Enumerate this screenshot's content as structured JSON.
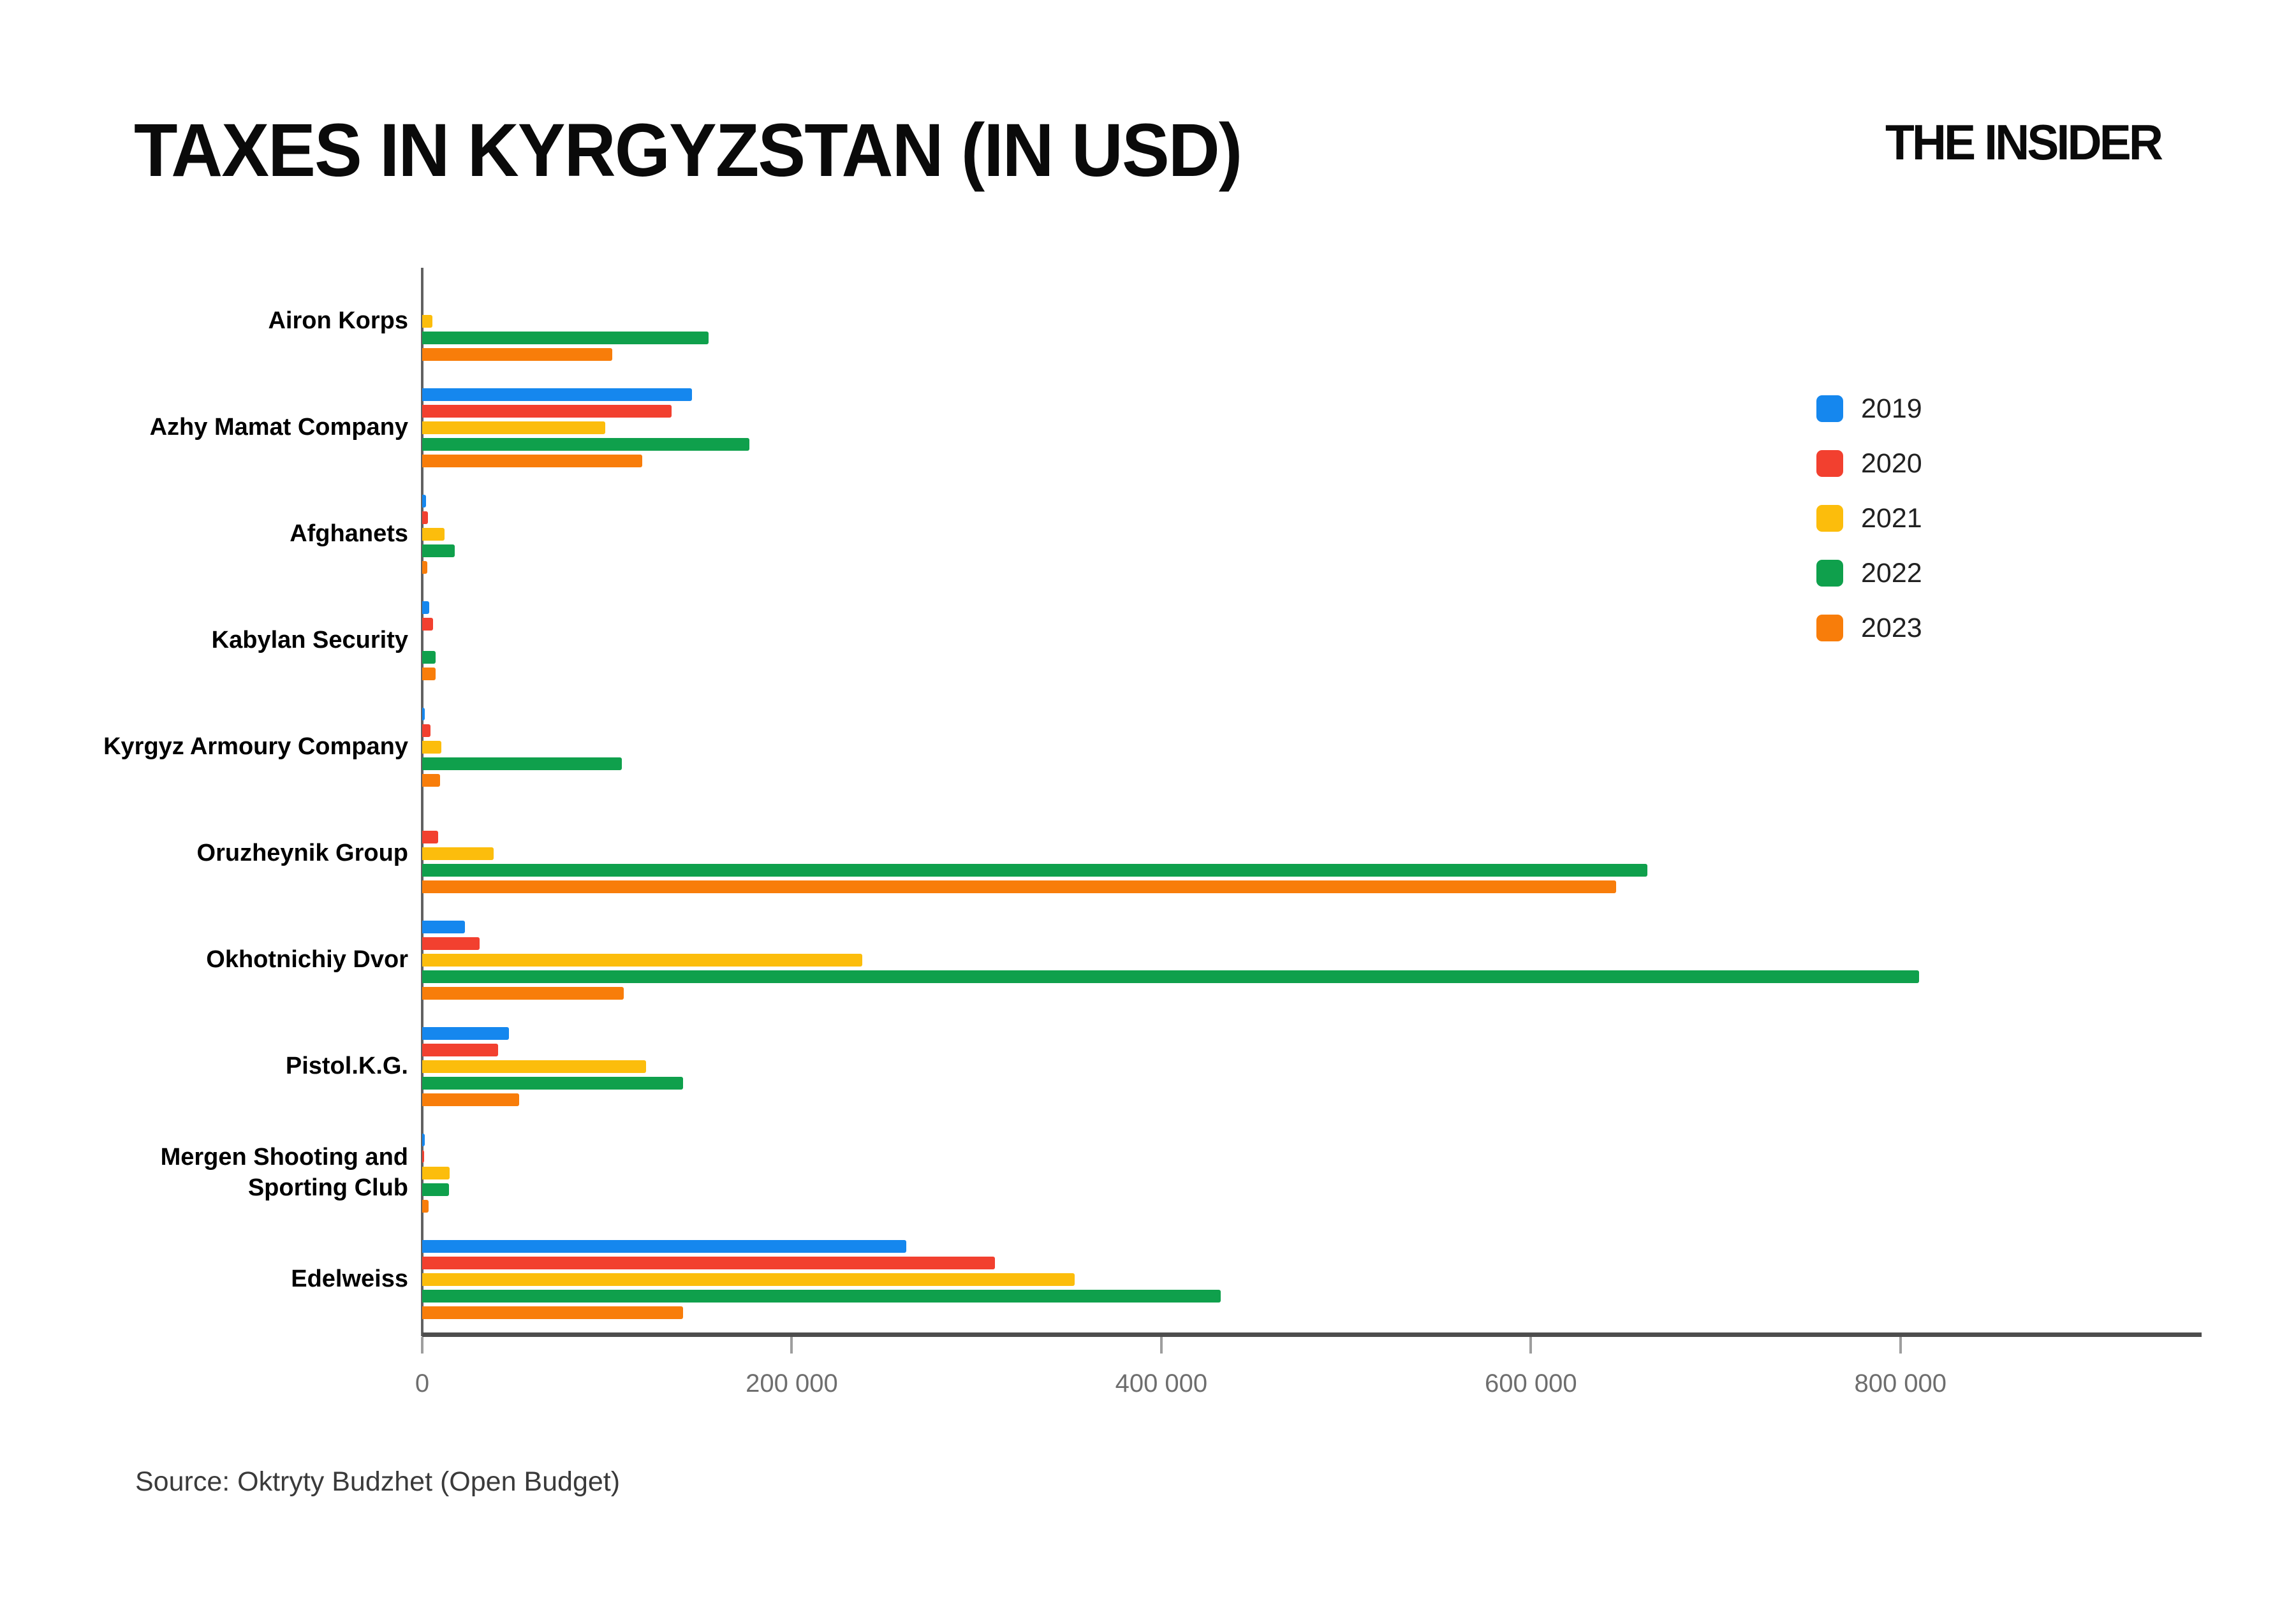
{
  "header": {
    "title": "TAXES IN KYRGYZSTAN (IN USD)",
    "brand": "THE INSIDER"
  },
  "footer": {
    "source": "Source: Oktryty Budzhet (Open Budget)"
  },
  "colors": {
    "y2019": "#1587EE",
    "y2020": "#F2402F",
    "y2021": "#FCBD0C",
    "y2022": "#0FA04C",
    "y2023": "#F87D0A",
    "axis": "#616161",
    "tick_label": "#6E6E6E"
  },
  "chart_data": {
    "type": "bar",
    "orientation": "horizontal",
    "title": "TAXES IN KYRGYZSTAN (IN USD)",
    "categories": [
      "Airon Korps",
      "Azhy Mamat Company",
      "Afghanets",
      "Kabylan Security",
      "Kyrgyz Armoury Company",
      "Oruzheynik Group",
      "Okhotnichiy Dvor",
      "Pistol.K.G.",
      "Mergen Shooting and Sporting Club",
      "Edelweiss"
    ],
    "series": [
      {
        "name": "2019",
        "color": "#1587EE",
        "values": [
          0,
          146000,
          2000,
          3700,
          1400,
          0,
          23000,
          47000,
          1300,
          262000
        ]
      },
      {
        "name": "2020",
        "color": "#F2402F",
        "values": [
          0,
          135000,
          3200,
          5800,
          4600,
          8600,
          31000,
          41000,
          500,
          310000
        ]
      },
      {
        "name": "2021",
        "color": "#FCBD0C",
        "values": [
          5500,
          99000,
          12000,
          0,
          10300,
          38500,
          238000,
          121000,
          14800,
          353000
        ]
      },
      {
        "name": "2022",
        "color": "#0FA04C",
        "values": [
          155000,
          177000,
          17600,
          7100,
          108000,
          663000,
          810000,
          141000,
          14600,
          432000
        ]
      },
      {
        "name": "2023",
        "color": "#F87D0A",
        "values": [
          103000,
          119000,
          2800,
          7100,
          9600,
          646000,
          109000,
          52500,
          3300,
          141000
        ]
      }
    ],
    "x_ticks": [
      "0",
      "200 000",
      "400 000",
      "600 000",
      "800 000"
    ],
    "x_tick_values": [
      0,
      200000,
      400000,
      600000,
      800000
    ],
    "xlim": [
      0,
      963000
    ],
    "grid": false,
    "legend_position": "right"
  }
}
